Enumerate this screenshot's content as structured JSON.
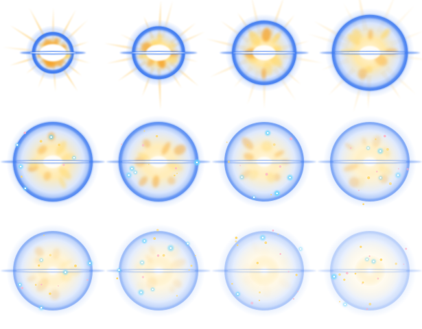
{
  "sprite_sheet": {
    "layout": {
      "rows": 3,
      "columns": 4
    },
    "background_color": "#ffffff",
    "palette": {
      "ring_blue": "#3f7cf0",
      "ring_light": "#b9d0fb",
      "glow_cyan": "#6fd8ff",
      "core_white": "#ffffff",
      "flame_orange": "#f5a328",
      "flame_yellow": "#ffd86b",
      "flare_gold": "#ffd27a",
      "sparkle_pink": "#ffb3c9"
    },
    "frames": [
      {
        "name": "burst-frame-1",
        "progress": 0.0
      },
      {
        "name": "burst-frame-2",
        "progress": 0.09
      },
      {
        "name": "burst-frame-3",
        "progress": 0.18
      },
      {
        "name": "burst-frame-4",
        "progress": 0.27
      },
      {
        "name": "burst-frame-5",
        "progress": 0.36
      },
      {
        "name": "burst-frame-6",
        "progress": 0.45
      },
      {
        "name": "burst-frame-7",
        "progress": 0.55
      },
      {
        "name": "burst-frame-8",
        "progress": 0.64
      },
      {
        "name": "burst-frame-9",
        "progress": 0.73
      },
      {
        "name": "burst-frame-10",
        "progress": 0.82
      },
      {
        "name": "burst-frame-11",
        "progress": 0.91
      },
      {
        "name": "burst-frame-12",
        "progress": 1.0
      }
    ]
  }
}
